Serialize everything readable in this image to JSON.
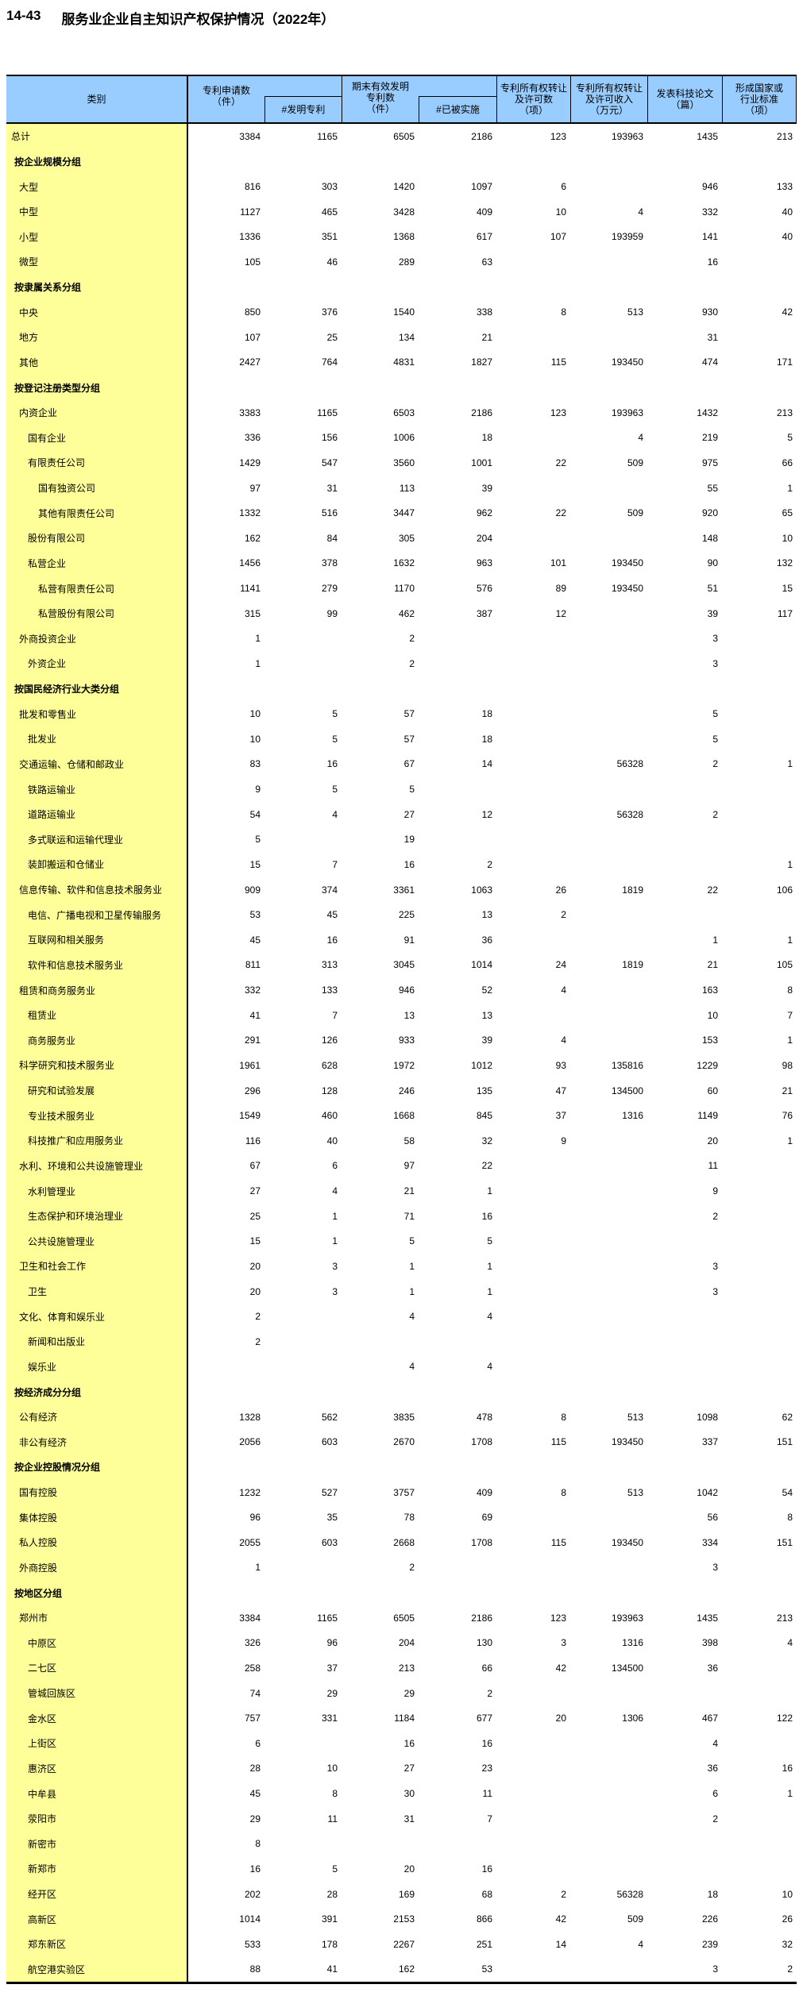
{
  "title": {
    "code": "14-43",
    "text": "服务业企业自主知识产权保护情况（2022年）"
  },
  "colors": {
    "header_bg": "#99CCFF",
    "category_bg": "#FFFF99",
    "border": "#000000"
  },
  "table": {
    "header": {
      "category": "类别",
      "patent_apps": "专利申请数\n（件）",
      "invention_patents": "#发明专利",
      "valid_patents": "期末有效发明\n专利数\n（件）",
      "implemented": "#已被实施",
      "transfer_count": "专利所有权转让\n及许可数\n（项）",
      "transfer_income": "专利所有权转让\n及许可收入\n（万元）",
      "papers": "发表科技论文\n（篇）",
      "standards": "形成国家或\n行业标准\n（项）"
    },
    "rows": [
      {
        "label": "总计",
        "lv": "t",
        "v": [
          "3384",
          "1165",
          "6505",
          "2186",
          "123",
          "193963",
          "1435",
          "213"
        ]
      },
      {
        "label": "按企业规模分组",
        "lv": "g",
        "bold": true,
        "v": [
          "",
          "",
          "",
          "",
          "",
          "",
          "",
          ""
        ]
      },
      {
        "label": "大型",
        "lv": "1",
        "v": [
          "816",
          "303",
          "1420",
          "1097",
          "6",
          "",
          "946",
          "133"
        ]
      },
      {
        "label": "中型",
        "lv": "1",
        "v": [
          "1127",
          "465",
          "3428",
          "409",
          "10",
          "4",
          "332",
          "40"
        ]
      },
      {
        "label": "小型",
        "lv": "1",
        "v": [
          "1336",
          "351",
          "1368",
          "617",
          "107",
          "193959",
          "141",
          "40"
        ]
      },
      {
        "label": "微型",
        "lv": "1",
        "v": [
          "105",
          "46",
          "289",
          "63",
          "",
          "",
          "16",
          ""
        ]
      },
      {
        "label": "按隶属关系分组",
        "lv": "g",
        "bold": true,
        "v": [
          "",
          "",
          "",
          "",
          "",
          "",
          "",
          ""
        ]
      },
      {
        "label": "中央",
        "lv": "1",
        "v": [
          "850",
          "376",
          "1540",
          "338",
          "8",
          "513",
          "930",
          "42"
        ]
      },
      {
        "label": "地方",
        "lv": "1",
        "v": [
          "107",
          "25",
          "134",
          "21",
          "",
          "",
          "31",
          ""
        ]
      },
      {
        "label": "其他",
        "lv": "1",
        "v": [
          "2427",
          "764",
          "4831",
          "1827",
          "115",
          "193450",
          "474",
          "171"
        ]
      },
      {
        "label": "按登记注册类型分组",
        "lv": "g",
        "bold": true,
        "v": [
          "",
          "",
          "",
          "",
          "",
          "",
          "",
          ""
        ]
      },
      {
        "label": "内资企业",
        "lv": "1",
        "v": [
          "3383",
          "1165",
          "6503",
          "2186",
          "123",
          "193963",
          "1432",
          "213"
        ]
      },
      {
        "label": "国有企业",
        "lv": "2",
        "v": [
          "336",
          "156",
          "1006",
          "18",
          "",
          "4",
          "219",
          "5"
        ]
      },
      {
        "label": "有限责任公司",
        "lv": "2",
        "v": [
          "1429",
          "547",
          "3560",
          "1001",
          "22",
          "509",
          "975",
          "66"
        ]
      },
      {
        "label": "国有独资公司",
        "lv": "3",
        "v": [
          "97",
          "31",
          "113",
          "39",
          "",
          "",
          "55",
          "1"
        ]
      },
      {
        "label": "其他有限责任公司",
        "lv": "3",
        "v": [
          "1332",
          "516",
          "3447",
          "962",
          "22",
          "509",
          "920",
          "65"
        ]
      },
      {
        "label": "股份有限公司",
        "lv": "2",
        "v": [
          "162",
          "84",
          "305",
          "204",
          "",
          "",
          "148",
          "10"
        ]
      },
      {
        "label": "私营企业",
        "lv": "2",
        "v": [
          "1456",
          "378",
          "1632",
          "963",
          "101",
          "193450",
          "90",
          "132"
        ]
      },
      {
        "label": "私营有限责任公司",
        "lv": "3",
        "v": [
          "1141",
          "279",
          "1170",
          "576",
          "89",
          "193450",
          "51",
          "15"
        ]
      },
      {
        "label": "私营股份有限公司",
        "lv": "3",
        "v": [
          "315",
          "99",
          "462",
          "387",
          "12",
          "",
          "39",
          "117"
        ]
      },
      {
        "label": "外商投资企业",
        "lv": "1",
        "v": [
          "1",
          "",
          "2",
          "",
          "",
          "",
          "3",
          ""
        ]
      },
      {
        "label": "外资企业",
        "lv": "2",
        "v": [
          "1",
          "",
          "2",
          "",
          "",
          "",
          "3",
          ""
        ]
      },
      {
        "label": "按国民经济行业大类分组",
        "lv": "g",
        "bold": true,
        "v": [
          "",
          "",
          "",
          "",
          "",
          "",
          "",
          ""
        ]
      },
      {
        "label": "批发和零售业",
        "lv": "1",
        "v": [
          "10",
          "5",
          "57",
          "18",
          "",
          "",
          "5",
          ""
        ]
      },
      {
        "label": "批发业",
        "lv": "2",
        "v": [
          "10",
          "5",
          "57",
          "18",
          "",
          "",
          "5",
          ""
        ]
      },
      {
        "label": "交通运输、仓储和邮政业",
        "lv": "1",
        "v": [
          "83",
          "16",
          "67",
          "14",
          "",
          "56328",
          "2",
          "1"
        ]
      },
      {
        "label": "铁路运输业",
        "lv": "2",
        "v": [
          "9",
          "5",
          "5",
          "",
          "",
          "",
          "",
          ""
        ]
      },
      {
        "label": "道路运输业",
        "lv": "2",
        "v": [
          "54",
          "4",
          "27",
          "12",
          "",
          "56328",
          "2",
          ""
        ]
      },
      {
        "label": "多式联运和运输代理业",
        "lv": "2",
        "v": [
          "5",
          "",
          "19",
          "",
          "",
          "",
          "",
          ""
        ]
      },
      {
        "label": "装卸搬运和仓储业",
        "lv": "2",
        "v": [
          "15",
          "7",
          "16",
          "2",
          "",
          "",
          "",
          "1"
        ]
      },
      {
        "label": "信息传输、软件和信息技术服务业",
        "lv": "1",
        "v": [
          "909",
          "374",
          "3361",
          "1063",
          "26",
          "1819",
          "22",
          "106"
        ]
      },
      {
        "label": "电信、广播电视和卫星传输服务",
        "lv": "2",
        "v": [
          "53",
          "45",
          "225",
          "13",
          "2",
          "",
          "",
          ""
        ]
      },
      {
        "label": "互联网和相关服务",
        "lv": "2",
        "v": [
          "45",
          "16",
          "91",
          "36",
          "",
          "",
          "1",
          "1"
        ]
      },
      {
        "label": "软件和信息技术服务业",
        "lv": "2",
        "v": [
          "811",
          "313",
          "3045",
          "1014",
          "24",
          "1819",
          "21",
          "105"
        ]
      },
      {
        "label": "租赁和商务服务业",
        "lv": "1",
        "v": [
          "332",
          "133",
          "946",
          "52",
          "4",
          "",
          "163",
          "8"
        ]
      },
      {
        "label": "租赁业",
        "lv": "2",
        "v": [
          "41",
          "7",
          "13",
          "13",
          "",
          "",
          "10",
          "7"
        ]
      },
      {
        "label": "商务服务业",
        "lv": "2",
        "v": [
          "291",
          "126",
          "933",
          "39",
          "4",
          "",
          "153",
          "1"
        ]
      },
      {
        "label": "科学研究和技术服务业",
        "lv": "1",
        "v": [
          "1961",
          "628",
          "1972",
          "1012",
          "93",
          "135816",
          "1229",
          "98"
        ]
      },
      {
        "label": "研究和试验发展",
        "lv": "2",
        "v": [
          "296",
          "128",
          "246",
          "135",
          "47",
          "134500",
          "60",
          "21"
        ]
      },
      {
        "label": "专业技术服务业",
        "lv": "2",
        "v": [
          "1549",
          "460",
          "1668",
          "845",
          "37",
          "1316",
          "1149",
          "76"
        ]
      },
      {
        "label": "科技推广和应用服务业",
        "lv": "2",
        "v": [
          "116",
          "40",
          "58",
          "32",
          "9",
          "",
          "20",
          "1"
        ]
      },
      {
        "label": "水利、环境和公共设施管理业",
        "lv": "1",
        "v": [
          "67",
          "6",
          "97",
          "22",
          "",
          "",
          "11",
          ""
        ]
      },
      {
        "label": "水利管理业",
        "lv": "2",
        "v": [
          "27",
          "4",
          "21",
          "1",
          "",
          "",
          "9",
          ""
        ]
      },
      {
        "label": "生态保护和环境治理业",
        "lv": "2",
        "v": [
          "25",
          "1",
          "71",
          "16",
          "",
          "",
          "2",
          ""
        ]
      },
      {
        "label": "公共设施管理业",
        "lv": "2",
        "v": [
          "15",
          "1",
          "5",
          "5",
          "",
          "",
          "",
          ""
        ]
      },
      {
        "label": "卫生和社会工作",
        "lv": "1",
        "v": [
          "20",
          "3",
          "1",
          "1",
          "",
          "",
          "3",
          ""
        ]
      },
      {
        "label": "卫生",
        "lv": "2",
        "v": [
          "20",
          "3",
          "1",
          "1",
          "",
          "",
          "3",
          ""
        ]
      },
      {
        "label": "文化、体育和娱乐业",
        "lv": "1",
        "v": [
          "2",
          "",
          "4",
          "4",
          "",
          "",
          "",
          ""
        ]
      },
      {
        "label": "新闻和出版业",
        "lv": "2",
        "v": [
          "2",
          "",
          "",
          "",
          "",
          "",
          "",
          ""
        ]
      },
      {
        "label": "娱乐业",
        "lv": "2",
        "v": [
          "",
          "",
          "4",
          "4",
          "",
          "",
          "",
          ""
        ]
      },
      {
        "label": "按经济成分分组",
        "lv": "g",
        "bold": true,
        "v": [
          "",
          "",
          "",
          "",
          "",
          "",
          "",
          ""
        ]
      },
      {
        "label": "公有经济",
        "lv": "1",
        "v": [
          "1328",
          "562",
          "3835",
          "478",
          "8",
          "513",
          "1098",
          "62"
        ]
      },
      {
        "label": "非公有经济",
        "lv": "1",
        "v": [
          "2056",
          "603",
          "2670",
          "1708",
          "115",
          "193450",
          "337",
          "151"
        ]
      },
      {
        "label": "按企业控股情况分组",
        "lv": "g",
        "bold": true,
        "v": [
          "",
          "",
          "",
          "",
          "",
          "",
          "",
          ""
        ]
      },
      {
        "label": "国有控股",
        "lv": "1",
        "v": [
          "1232",
          "527",
          "3757",
          "409",
          "8",
          "513",
          "1042",
          "54"
        ]
      },
      {
        "label": "集体控股",
        "lv": "1",
        "v": [
          "96",
          "35",
          "78",
          "69",
          "",
          "",
          "56",
          "8"
        ]
      },
      {
        "label": "私人控股",
        "lv": "1",
        "v": [
          "2055",
          "603",
          "2668",
          "1708",
          "115",
          "193450",
          "334",
          "151"
        ]
      },
      {
        "label": "外商控股",
        "lv": "1",
        "v": [
          "1",
          "",
          "2",
          "",
          "",
          "",
          "3",
          ""
        ]
      },
      {
        "label": "按地区分组",
        "lv": "g",
        "bold": true,
        "v": [
          "",
          "",
          "",
          "",
          "",
          "",
          "",
          ""
        ]
      },
      {
        "label": "郑州市",
        "lv": "1",
        "v": [
          "3384",
          "1165",
          "6505",
          "2186",
          "123",
          "193963",
          "1435",
          "213"
        ]
      },
      {
        "label": "中原区",
        "lv": "2",
        "v": [
          "326",
          "96",
          "204",
          "130",
          "3",
          "1316",
          "398",
          "4"
        ]
      },
      {
        "label": "二七区",
        "lv": "2",
        "v": [
          "258",
          "37",
          "213",
          "66",
          "42",
          "134500",
          "36",
          ""
        ]
      },
      {
        "label": "管城回族区",
        "lv": "2",
        "v": [
          "74",
          "29",
          "29",
          "2",
          "",
          "",
          "",
          ""
        ]
      },
      {
        "label": "金水区",
        "lv": "2",
        "v": [
          "757",
          "331",
          "1184",
          "677",
          "20",
          "1306",
          "467",
          "122"
        ]
      },
      {
        "label": "上街区",
        "lv": "2",
        "v": [
          "6",
          "",
          "16",
          "16",
          "",
          "",
          "4",
          ""
        ]
      },
      {
        "label": "惠济区",
        "lv": "2",
        "v": [
          "28",
          "10",
          "27",
          "23",
          "",
          "",
          "36",
          "16"
        ]
      },
      {
        "label": "中牟县",
        "lv": "2",
        "v": [
          "45",
          "8",
          "30",
          "11",
          "",
          "",
          "6",
          "1"
        ]
      },
      {
        "label": "荥阳市",
        "lv": "2",
        "v": [
          "29",
          "11",
          "31",
          "7",
          "",
          "",
          "2",
          ""
        ]
      },
      {
        "label": "新密市",
        "lv": "2",
        "v": [
          "8",
          "",
          "",
          "",
          "",
          "",
          "",
          ""
        ]
      },
      {
        "label": "新郑市",
        "lv": "2",
        "v": [
          "16",
          "5",
          "20",
          "16",
          "",
          "",
          "",
          ""
        ]
      },
      {
        "label": "经开区",
        "lv": "2",
        "v": [
          "202",
          "28",
          "169",
          "68",
          "2",
          "56328",
          "18",
          "10"
        ]
      },
      {
        "label": "高新区",
        "lv": "2",
        "v": [
          "1014",
          "391",
          "2153",
          "866",
          "42",
          "509",
          "226",
          "26"
        ]
      },
      {
        "label": "郑东新区",
        "lv": "2",
        "v": [
          "533",
          "178",
          "2267",
          "251",
          "14",
          "4",
          "239",
          "32"
        ]
      },
      {
        "label": "航空港实验区",
        "lv": "2",
        "v": [
          "88",
          "41",
          "162",
          "53",
          "",
          "",
          "3",
          "2"
        ]
      }
    ]
  }
}
